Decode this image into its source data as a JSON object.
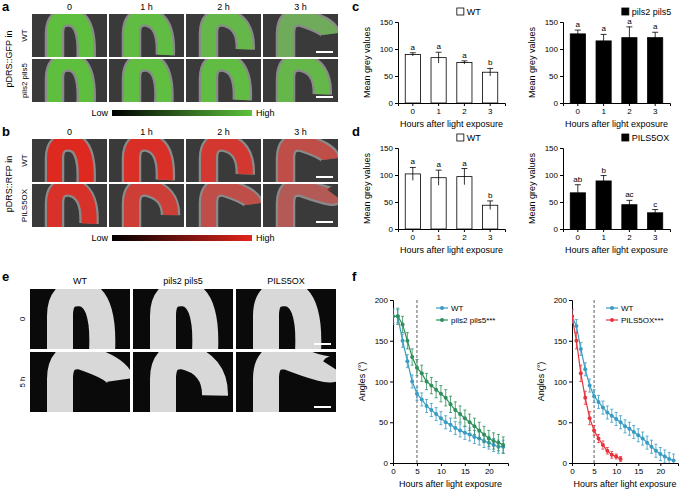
{
  "panel_labels": [
    "a",
    "b",
    "c",
    "d",
    "e",
    "f"
  ],
  "image_panels": [
    {
      "construct": "pDRS::GFP in",
      "columns": [
        "0",
        "1 h",
        "2 h",
        "3 h"
      ],
      "rows": [
        "WT",
        "pils2 pils5"
      ],
      "colorbar": [
        "Low",
        "High"
      ],
      "color": "#5cc23a"
    },
    {
      "construct": "pDRS::RFP in",
      "columns": [
        "0",
        "1 h",
        "2 h",
        "3 h"
      ],
      "rows": [
        "WT",
        "PILS5OX"
      ],
      "colorbar": [
        "Low",
        "High"
      ],
      "color": "#e3241b"
    },
    {
      "columns": [
        "WT",
        "pils2 pils5",
        "PILS5OX"
      ],
      "rows": [
        "0",
        "5 h"
      ]
    }
  ],
  "chart_data": [
    {
      "type": "bar",
      "categories": [
        "0",
        "1",
        "2",
        "3"
      ],
      "series": [
        {
          "name": "WT",
          "color": "#ffffff",
          "values": [
            90,
            84,
            75,
            57
          ],
          "errors": [
            3,
            10,
            3,
            7
          ],
          "significance": [
            "a",
            "a",
            "a",
            "b"
          ]
        }
      ],
      "ylim": [
        0,
        150
      ],
      "yticks": [
        0,
        50,
        100,
        150
      ],
      "x_label": "Hours after light exposure",
      "y_label": "Mean grey values",
      "legend": "top-right",
      "grid": false
    },
    {
      "type": "bar",
      "categories": [
        "0",
        "1",
        "2",
        "3"
      ],
      "series": [
        {
          "name": "pils2 pils5",
          "color": "#000000",
          "values": [
            128,
            115,
            121,
            121
          ],
          "errors": [
            7,
            12,
            20,
            10
          ],
          "significance": [
            "a",
            "a",
            "a",
            "a"
          ]
        }
      ],
      "ylim": [
        0,
        150
      ],
      "yticks": [
        0,
        50,
        100,
        150
      ],
      "x_label": "Hours after light exposure",
      "y_label": "Mean grey values",
      "legend": "top-right",
      "grid": false
    },
    {
      "type": "bar",
      "categories": [
        "0",
        "1",
        "2",
        "3"
      ],
      "series": [
        {
          "name": "WT",
          "color": "#ffffff",
          "values": [
            102,
            95,
            97,
            44
          ],
          "errors": [
            12,
            14,
            15,
            8
          ],
          "significance": [
            "a",
            "a",
            "a",
            "b"
          ]
        }
      ],
      "ylim": [
        0,
        150
      ],
      "yticks": [
        0,
        50,
        100,
        150
      ],
      "x_label": "Hours after light exposure",
      "y_label": "Mean grey values",
      "legend": "top-right",
      "grid": false
    },
    {
      "type": "bar",
      "categories": [
        "0",
        "1",
        "2",
        "3"
      ],
      "series": [
        {
          "name": "PILS5OX",
          "color": "#000000",
          "values": [
            67,
            89,
            45,
            30
          ],
          "errors": [
            15,
            10,
            8,
            6
          ],
          "significance": [
            "ab",
            "b",
            "ac",
            "c"
          ]
        }
      ],
      "ylim": [
        0,
        150
      ],
      "yticks": [
        0,
        50,
        100,
        150
      ],
      "x_label": "Hours after light exposure",
      "y_label": "Mean grey values",
      "legend": "top-right",
      "grid": false
    },
    {
      "type": "line",
      "x": [
        0,
        1,
        2,
        3,
        4,
        5,
        6,
        7,
        8,
        9,
        10,
        11,
        12,
        13,
        14,
        15,
        16,
        17,
        18,
        19,
        20,
        21,
        22,
        23
      ],
      "series": [
        {
          "name": "WT",
          "color": "#3a9cc2",
          "values": [
            180,
            180,
            150,
            125,
            100,
            85,
            78,
            70,
            65,
            60,
            55,
            50,
            47,
            43,
            40,
            37,
            35,
            32,
            30,
            27,
            25,
            22,
            20,
            20
          ],
          "errors": [
            8,
            8,
            8,
            8,
            8,
            8,
            8,
            8,
            8,
            8,
            8,
            8,
            8,
            8,
            8,
            8,
            8,
            8,
            8,
            8,
            8,
            8,
            8,
            8
          ]
        },
        {
          "name": "pils2 pils5***",
          "color": "#2f8f5b",
          "values": [
            180,
            180,
            170,
            150,
            130,
            117,
            110,
            100,
            95,
            90,
            85,
            80,
            72,
            65,
            60,
            55,
            50,
            45,
            40,
            35,
            30,
            27,
            25,
            22
          ],
          "errors": [
            10,
            10,
            10,
            10,
            10,
            10,
            10,
            10,
            10,
            10,
            10,
            10,
            10,
            10,
            10,
            10,
            10,
            10,
            10,
            10,
            10,
            10,
            10,
            10
          ]
        }
      ],
      "xlim": [
        0,
        24
      ],
      "xticks": [
        0,
        5,
        10,
        15,
        20
      ],
      "ylim": [
        0,
        200
      ],
      "yticks": [
        0,
        50,
        100,
        150,
        200
      ],
      "x_label": "Hours after light exposure",
      "y_label": "Angles (°)",
      "marker": "circle",
      "legend": "top-right",
      "reference_line": 5,
      "grid": false
    },
    {
      "type": "line",
      "x": [
        0,
        1,
        2,
        3,
        4,
        5,
        6,
        7,
        8,
        9,
        10,
        11,
        12,
        13,
        14,
        15,
        16,
        17,
        18,
        19,
        20,
        21,
        22,
        23
      ],
      "series": [
        {
          "name": "WT",
          "color": "#3a9cc2",
          "values": [
            180,
            168,
            140,
            115,
            95,
            82,
            75,
            68,
            62,
            58,
            54,
            50,
            45,
            42,
            38,
            34,
            30,
            25,
            20,
            15,
            11,
            8,
            5,
            3
          ],
          "errors": [
            8,
            8,
            8,
            8,
            8,
            8,
            8,
            8,
            8,
            8,
            8,
            8,
            8,
            8,
            8,
            8,
            8,
            8,
            8,
            8,
            8,
            8,
            8,
            8
          ]
        },
        {
          "name": "PILS5OX***",
          "color": "#e5323c",
          "values": [
            180,
            150,
            110,
            80,
            55,
            40,
            30,
            22,
            15,
            10,
            8,
            5,
            null,
            null,
            null,
            null,
            null,
            null,
            null,
            null,
            null,
            null,
            null,
            null
          ],
          "errors": [
            8,
            10,
            10,
            8,
            8,
            6,
            5,
            5,
            4,
            4,
            3,
            3,
            null,
            null,
            null,
            null,
            null,
            null,
            null,
            null,
            null,
            null,
            null,
            null
          ]
        }
      ],
      "xlim": [
        0,
        24
      ],
      "xticks": [
        0,
        5,
        10,
        15,
        20
      ],
      "ylim": [
        0,
        200
      ],
      "yticks": [
        0,
        50,
        100,
        150,
        200
      ],
      "x_label": "Hours after light exposure",
      "y_label": "Angles (°)",
      "marker": "circle",
      "legend": "top-right",
      "reference_line": 5,
      "grid": false
    }
  ]
}
